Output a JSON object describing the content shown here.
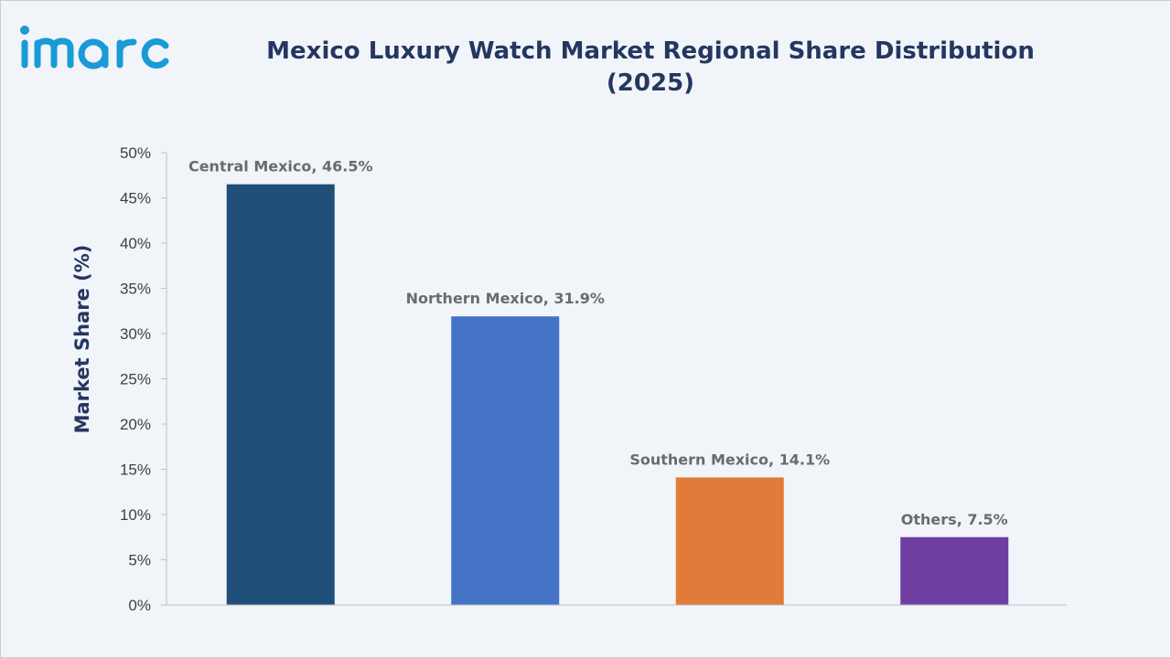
{
  "brand": {
    "logo_text": "imarc",
    "logo_color": "#1a9ad6"
  },
  "title": {
    "line1": "Mexico Luxury Watch Market Regional Share Distribution",
    "line2": "(2025)"
  },
  "chart_data": {
    "type": "bar",
    "title": "Mexico Luxury Watch Market Regional Share Distribution (2025)",
    "xlabel": "",
    "ylabel": "Market Share (%)",
    "ylim": [
      0,
      50
    ],
    "y_ticks": [
      "0%",
      "5%",
      "10%",
      "15%",
      "20%",
      "25%",
      "30%",
      "35%",
      "40%",
      "45%",
      "50%"
    ],
    "grid": false,
    "legend": "none",
    "categories": [
      "Central Mexico",
      "Northern Mexico",
      "Southern Mexico",
      "Others"
    ],
    "values": [
      46.5,
      31.9,
      14.1,
      7.5
    ],
    "data_labels": [
      "Central Mexico, 46.5%",
      "Northern Mexico, 31.9%",
      "Southern Mexico, 14.1%",
      "Others, 7.5%"
    ],
    "colors": [
      "#1f4e79",
      "#4472c4",
      "#e07b39",
      "#6e3fa0"
    ]
  }
}
